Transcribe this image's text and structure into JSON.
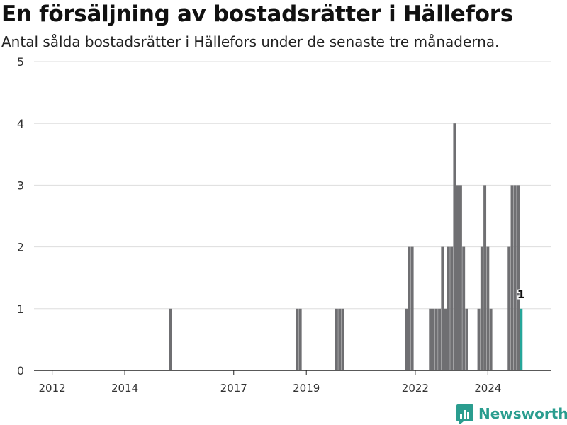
{
  "header": {
    "title": "En försäljning av bostadsrätter i Hällefors",
    "subtitle": "Antal sålda bostadsrätter i Hällefors under de senaste tre månaderna."
  },
  "brand": {
    "name": "Newsworthy",
    "color": "#2a9d8f"
  },
  "chart_data": {
    "type": "bar",
    "ylim": [
      0,
      5
    ],
    "xlim": [
      "2011-07",
      "2025-10"
    ],
    "y_ticks": [
      "0",
      "1",
      "2",
      "3",
      "4",
      "5"
    ],
    "x_ticks": [
      {
        "label": "2012",
        "date": "2012-01"
      },
      {
        "label": "2014",
        "date": "2014-01"
      },
      {
        "label": "2017",
        "date": "2017-01"
      },
      {
        "label": "2019",
        "date": "2019-01"
      },
      {
        "label": "2022",
        "date": "2022-01"
      },
      {
        "label": "2024",
        "date": "2024-01"
      }
    ],
    "grid": true,
    "colors": {
      "bar": "#6f6f72",
      "highlight": "#26a69a",
      "grid": "#dddddd",
      "axis": "#222222"
    },
    "highlight": {
      "date": "2024-12",
      "value": 1,
      "label": "1"
    },
    "points": [
      {
        "date": "2015-04",
        "value": 1
      },
      {
        "date": "2018-10",
        "value": 1
      },
      {
        "date": "2018-11",
        "value": 1
      },
      {
        "date": "2019-11",
        "value": 1
      },
      {
        "date": "2019-12",
        "value": 1
      },
      {
        "date": "2020-01",
        "value": 1
      },
      {
        "date": "2021-10",
        "value": 1
      },
      {
        "date": "2021-11",
        "value": 2
      },
      {
        "date": "2021-12",
        "value": 2
      },
      {
        "date": "2022-06",
        "value": 1
      },
      {
        "date": "2022-07",
        "value": 1
      },
      {
        "date": "2022-08",
        "value": 1
      },
      {
        "date": "2022-09",
        "value": 1
      },
      {
        "date": "2022-10",
        "value": 2
      },
      {
        "date": "2022-11",
        "value": 1
      },
      {
        "date": "2022-12",
        "value": 2
      },
      {
        "date": "2023-01",
        "value": 2
      },
      {
        "date": "2023-02",
        "value": 4
      },
      {
        "date": "2023-03",
        "value": 3
      },
      {
        "date": "2023-04",
        "value": 3
      },
      {
        "date": "2023-05",
        "value": 2
      },
      {
        "date": "2023-06",
        "value": 1
      },
      {
        "date": "2023-10",
        "value": 1
      },
      {
        "date": "2023-11",
        "value": 2
      },
      {
        "date": "2023-12",
        "value": 3
      },
      {
        "date": "2024-01",
        "value": 2
      },
      {
        "date": "2024-02",
        "value": 1
      },
      {
        "date": "2024-08",
        "value": 2
      },
      {
        "date": "2024-09",
        "value": 3
      },
      {
        "date": "2024-10",
        "value": 3
      },
      {
        "date": "2024-11",
        "value": 3
      },
      {
        "date": "2024-12",
        "value": 1
      }
    ]
  }
}
